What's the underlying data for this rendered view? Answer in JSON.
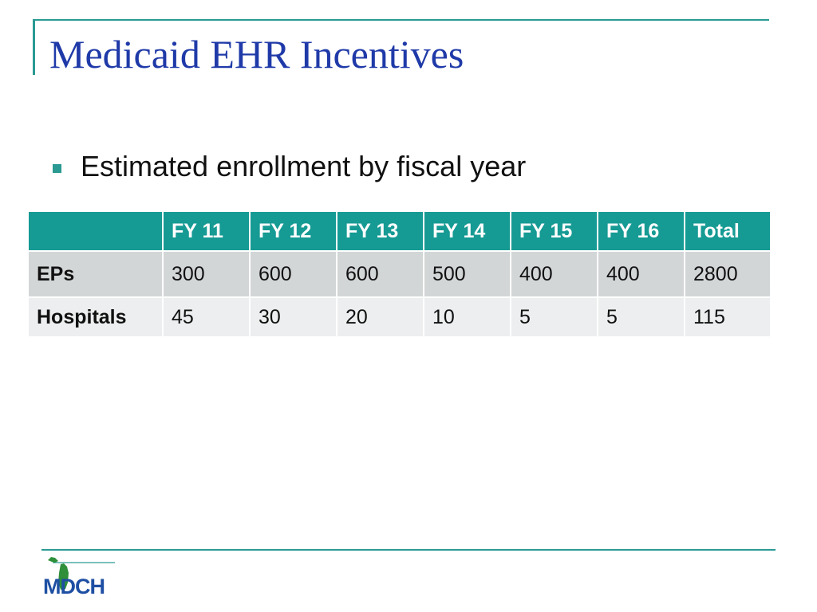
{
  "title": "Medicaid EHR Incentives",
  "bullet": "Estimated enrollment by fiscal year",
  "table": {
    "headers": [
      "",
      "FY 11",
      "FY 12",
      "FY 13",
      "FY 14",
      "FY 15",
      "FY 16",
      "Total"
    ],
    "rows": [
      {
        "label": "EPs",
        "cells": [
          "300",
          "600",
          "600",
          "500",
          "400",
          "400",
          "2800"
        ]
      },
      {
        "label": "Hospitals",
        "cells": [
          "45",
          "30",
          "20",
          "10",
          "5",
          "5",
          "115"
        ]
      }
    ]
  },
  "logo_text": "MDCH",
  "colors": {
    "accent": "#2a9a93",
    "header_fill": "#169a94",
    "title": "#1f3aa8",
    "logo": "#1e4fa3"
  }
}
